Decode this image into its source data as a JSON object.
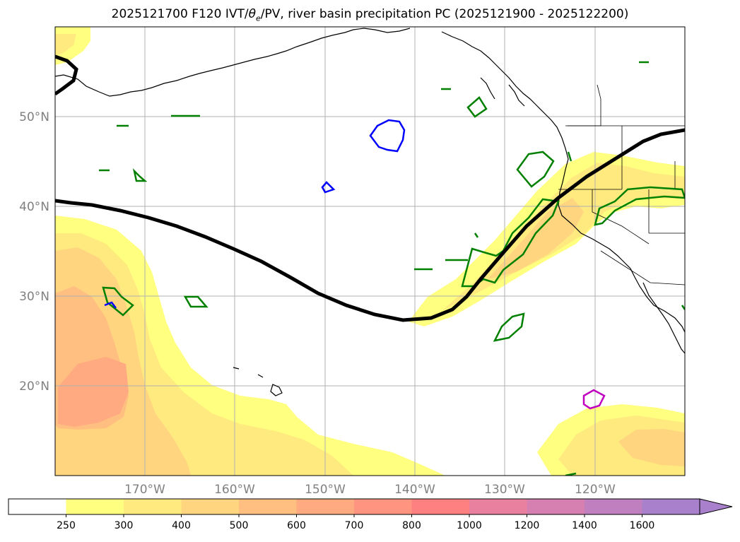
{
  "title": "2025121700 F120 IVT/θe/PV, river basin precipitation PC (2025121900 - 2025122200)",
  "title_parts": {
    "prefix": "2025121700 F120 IVT/",
    "theta": "θ",
    "sub": "e",
    "suffix": "/PV, river basin precipitation PC (2025121900 - 2025122200)"
  },
  "map": {
    "lon_range": [
      -180,
      -110
    ],
    "lat_range": [
      10,
      60
    ],
    "lon_ticks": [
      {
        "lon": -170,
        "label": "170°W"
      },
      {
        "lon": -160,
        "label": "160°W"
      },
      {
        "lon": -150,
        "label": "150°W"
      },
      {
        "lon": -140,
        "label": "140°W"
      },
      {
        "lon": -130,
        "label": "130°W"
      },
      {
        "lon": -120,
        "label": "120°W"
      }
    ],
    "lat_ticks": [
      {
        "lat": 50,
        "label": "50°N"
      },
      {
        "lat": 40,
        "label": "40°N"
      },
      {
        "lat": 30,
        "label": "30°N"
      },
      {
        "lat": 20,
        "label": "20°N"
      }
    ],
    "grid": true
  },
  "colorbar": {
    "colors": [
      "#ffffff",
      "#ffff80",
      "#ffea80",
      "#ffd580",
      "#ffbf80",
      "#ffaa80",
      "#ff9580",
      "#ff8080",
      "#ea80a0",
      "#d580b0",
      "#c080c0",
      "#a880cc"
    ],
    "labels": [
      "250",
      "300",
      "400",
      "500",
      "600",
      "700",
      "800",
      "1000",
      "1200",
      "1400",
      "1600"
    ],
    "extend": "max"
  },
  "colors": {
    "pv_contour": "#000000",
    "green_contour": "#008000",
    "blue_contour": "#0000ff",
    "magenta_contour": "#c000c0",
    "coastline": "#000000",
    "gridline": "#b0b0b0"
  }
}
